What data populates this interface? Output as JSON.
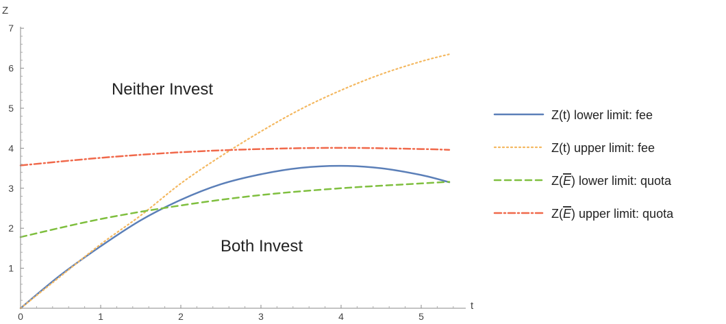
{
  "chart_data": {
    "type": "line",
    "title": "",
    "xlabel": "t",
    "ylabel": "Z",
    "xlim": [
      0,
      5.6
    ],
    "ylim": [
      0,
      7
    ],
    "x_ticks": [
      0,
      1,
      2,
      3,
      4,
      5
    ],
    "y_ticks": [
      1,
      2,
      3,
      4,
      5,
      6,
      7
    ],
    "grid": false,
    "legend_position": "right",
    "annotations": [
      {
        "text": "Neither Invest",
        "x": 1.95,
        "y": 5.45
      },
      {
        "text": "Both Invest",
        "x": 3.05,
        "y": 1.8
      }
    ],
    "series": [
      {
        "name": "Z(t) lower limit: fee",
        "legend_prefix": "Z(t) lower limit: fee",
        "legend_bar": "",
        "legend_suffix": "",
        "color": "#5b7fb8",
        "dash": "",
        "width": 2.5,
        "x": [
          0,
          0.5,
          1.0,
          1.5,
          2.0,
          2.5,
          3.0,
          3.5,
          4.0,
          4.5,
          5.0,
          5.35
        ],
        "y": [
          0.0,
          0.83,
          1.55,
          2.2,
          2.71,
          3.1,
          3.35,
          3.51,
          3.56,
          3.5,
          3.33,
          3.15
        ]
      },
      {
        "name": "Z(t) upper limit: fee",
        "legend_prefix": "Z(t) upper limit: fee",
        "legend_bar": "",
        "legend_suffix": "",
        "color": "#f4b860",
        "dash": "2 4",
        "width": 2.2,
        "x": [
          0,
          0.5,
          1.0,
          1.5,
          2.0,
          2.5,
          3.0,
          3.5,
          4.0,
          4.5,
          5.0,
          5.35
        ],
        "y": [
          0.0,
          0.8,
          1.6,
          2.32,
          3.12,
          3.8,
          4.42,
          4.98,
          5.45,
          5.85,
          6.17,
          6.35
        ]
      },
      {
        "name": "Z(E) lower limit: quota",
        "legend_prefix": "Z(",
        "legend_bar": "E",
        "legend_suffix": ") lower limit: quota",
        "color": "#7fbf3f",
        "dash": "9 6",
        "width": 2.5,
        "x": [
          0,
          1,
          2,
          3,
          4,
          5,
          5.35
        ],
        "y": [
          1.78,
          2.23,
          2.57,
          2.83,
          3.0,
          3.12,
          3.16
        ]
      },
      {
        "name": "Z(E) upper limit: quota",
        "legend_prefix": "Z(",
        "legend_bar": "E",
        "legend_suffix": ") upper limit: quota",
        "color": "#f0684a",
        "dash": "10 4 2 4",
        "width": 2.5,
        "x": [
          0,
          1,
          2,
          3,
          4,
          5,
          5.35
        ],
        "y": [
          3.57,
          3.76,
          3.9,
          3.98,
          4.01,
          3.98,
          3.96
        ]
      }
    ]
  }
}
